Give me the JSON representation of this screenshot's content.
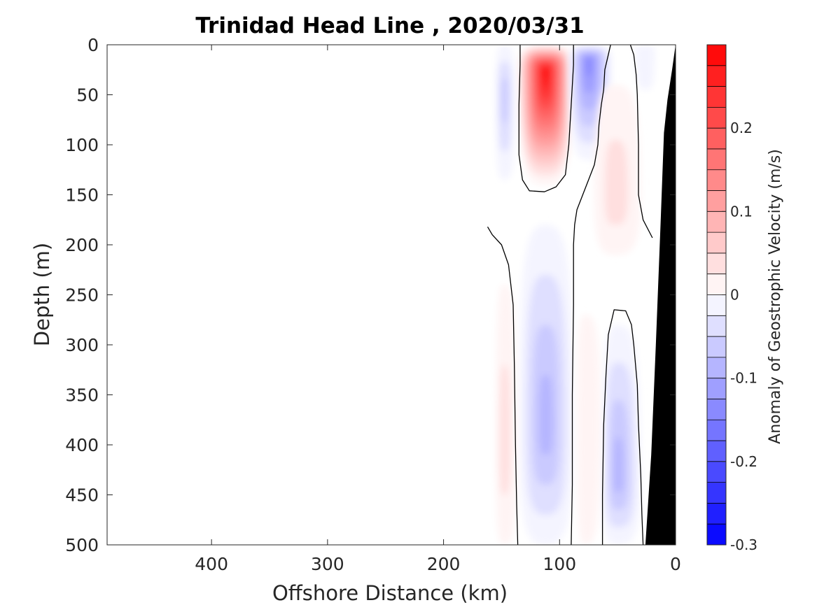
{
  "chart_data": {
    "type": "heatmap",
    "title": "Trinidad Head Line , 2020/03/31",
    "xlabel": "Offshore Distance (km)",
    "ylabel": "Depth (m)",
    "xlim": [
      490,
      0
    ],
    "ylim": [
      0,
      500
    ],
    "x_reversed": true,
    "y_reversed": true,
    "x_ticks": [
      "400",
      "300",
      "200",
      "100",
      "0"
    ],
    "x_tick_values": [
      400,
      300,
      200,
      100,
      0
    ],
    "y_ticks": [
      "0",
      "50",
      "100",
      "150",
      "200",
      "250",
      "300",
      "350",
      "400",
      "450",
      "500"
    ],
    "y_tick_values": [
      0,
      50,
      100,
      150,
      200,
      250,
      300,
      350,
      400,
      450,
      500
    ],
    "colorbar": {
      "label": "Anomaly of Geostrophic Velocity (m/s)",
      "range": [
        -0.3,
        0.3
      ],
      "levels": 24,
      "ticks": [
        "0.2",
        "0.1",
        "0",
        "-0.1",
        "-0.2",
        "-0.3"
      ],
      "tick_values": [
        0.2,
        0.1,
        0,
        -0.1,
        -0.2,
        -0.3
      ],
      "negative_color": "#0000ff",
      "positive_color": "#ff0000",
      "zero_color": "#ffffff"
    },
    "bathymetry_color": "#000000",
    "bathymetry": [
      [
        0,
        0
      ],
      [
        3,
        25
      ],
      [
        7,
        55
      ],
      [
        10,
        88
      ],
      [
        13,
        180
      ],
      [
        17,
        300
      ],
      [
        21,
        410
      ],
      [
        26,
        500
      ]
    ],
    "features": [
      {
        "kind": "anomaly",
        "sign": "positive",
        "center_km": 112,
        "center_depth_m": 25,
        "peak": 0.3,
        "km_range": [
          136,
          88
        ],
        "depth_range": [
          0,
          140
        ]
      },
      {
        "kind": "anomaly",
        "sign": "negative",
        "center_km": 75,
        "center_depth_m": 15,
        "peak": -0.15,
        "km_range": [
          92,
          55
        ],
        "depth_range": [
          0,
          115
        ]
      },
      {
        "kind": "anomaly",
        "sign": "negative",
        "center_km": 148,
        "center_depth_m": 50,
        "peak": -0.08,
        "km_range": [
          155,
          138
        ],
        "depth_range": [
          0,
          135
        ]
      },
      {
        "kind": "anomaly",
        "sign": "negative",
        "center_km": 25,
        "center_depth_m": 5,
        "peak": -0.03,
        "km_range": [
          35,
          18
        ],
        "depth_range": [
          0,
          45
        ]
      },
      {
        "kind": "anomaly",
        "sign": "positive",
        "center_km": 52,
        "center_depth_m": 150,
        "peak": 0.06,
        "km_range": [
          70,
          30
        ],
        "depth_range": [
          40,
          210
        ]
      },
      {
        "kind": "anomaly",
        "sign": "negative",
        "center_km": 112,
        "center_depth_m": 380,
        "peak": -0.11,
        "km_range": [
          135,
          88
        ],
        "depth_range": [
          180,
          500
        ]
      },
      {
        "kind": "anomaly",
        "sign": "negative",
        "center_km": 50,
        "center_depth_m": 430,
        "peak": -0.1,
        "km_range": [
          64,
          30
        ],
        "depth_range": [
          280,
          500
        ]
      },
      {
        "kind": "anomaly",
        "sign": "positive",
        "center_km": 148,
        "center_depth_m": 400,
        "peak": 0.05,
        "km_range": [
          155,
          137
        ],
        "depth_range": [
          240,
          500
        ]
      },
      {
        "kind": "anomaly",
        "sign": "positive",
        "center_km": 78,
        "center_depth_m": 380,
        "peak": 0.03,
        "km_range": [
          85,
          65
        ],
        "depth_range": [
          270,
          500
        ]
      }
    ],
    "zero_contours": [
      [
        [
          134,
          0
        ],
        [
          134,
          20
        ],
        [
          135,
          60
        ],
        [
          135,
          110
        ],
        [
          132,
          135
        ],
        [
          126,
          146
        ],
        [
          113,
          147
        ],
        [
          103,
          142
        ],
        [
          95,
          130
        ],
        [
          92,
          100
        ],
        [
          90,
          60
        ],
        [
          88,
          20
        ],
        [
          88,
          0
        ]
      ],
      [
        [
          56,
          0
        ],
        [
          58,
          10
        ],
        [
          61,
          25
        ],
        [
          62,
          45
        ],
        [
          64,
          60
        ],
        [
          66,
          80
        ],
        [
          67,
          100
        ],
        [
          70,
          120
        ],
        [
          75,
          135
        ],
        [
          80,
          150
        ],
        [
          85,
          165
        ],
        [
          87,
          180
        ],
        [
          88,
          200
        ],
        [
          88,
          260
        ],
        [
          89,
          350
        ],
        [
          89,
          440
        ],
        [
          90,
          500
        ]
      ],
      [
        [
          39,
          0
        ],
        [
          36,
          10
        ],
        [
          34,
          30
        ],
        [
          33,
          50
        ],
        [
          32,
          100
        ],
        [
          32,
          150
        ],
        [
          28,
          175
        ],
        [
          20,
          193
        ]
      ],
      [
        [
          162,
          182
        ],
        [
          158,
          190
        ],
        [
          150,
          200
        ],
        [
          144,
          220
        ],
        [
          140,
          260
        ],
        [
          139,
          320
        ],
        [
          138,
          400
        ],
        [
          137,
          460
        ],
        [
          136,
          500
        ]
      ],
      [
        [
          63,
          500
        ],
        [
          63,
          450
        ],
        [
          62,
          380
        ],
        [
          60,
          330
        ],
        [
          58,
          290
        ],
        [
          53,
          265
        ],
        [
          43,
          266
        ],
        [
          38,
          280
        ],
        [
          36,
          300
        ],
        [
          33,
          340
        ],
        [
          32,
          380
        ],
        [
          30,
          430
        ],
        [
          29,
          470
        ],
        [
          28,
          500
        ]
      ]
    ]
  }
}
